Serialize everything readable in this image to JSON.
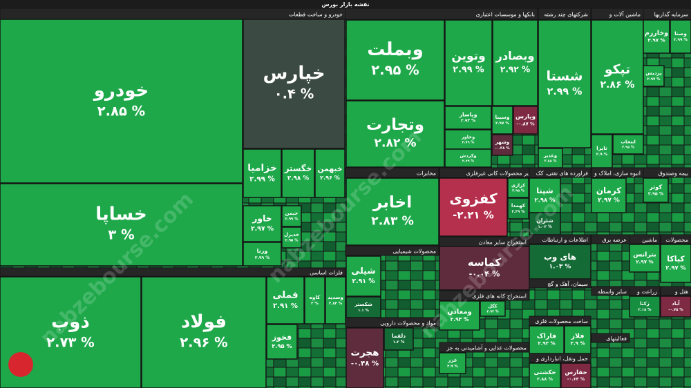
{
  "chart_data": {
    "type": "treemap",
    "title": "نقشه بازار بورس",
    "watermark": "nabzebourse.com",
    "sectors": [
      {
        "name": "خودرو و ساخت قطعات",
        "tiles": [
          {
            "name": "خودرو",
            "value": 2.85,
            "value_label": "۲.۸۵ %"
          },
          {
            "name": "خساپا",
            "value": 3,
            "value_label": "۳ %"
          },
          {
            "name": "خپارس",
            "value": 0.4,
            "value_label": "۰.۴ %"
          },
          {
            "name": "خزامیا",
            "value": 2.99,
            "value_label": "۲.۹۹ %"
          },
          {
            "name": "خگستر",
            "value": 2.98,
            "value_label": "۲.۹۸ %"
          },
          {
            "name": "خبهمن",
            "value": 2.96,
            "value_label": "۲.۹۶ %"
          },
          {
            "name": "خاور",
            "value": 2.97,
            "value_label": "۲.۹۷ %"
          },
          {
            "name": "ورنا",
            "value": 2.99,
            "value_label": "۲.۹۹ %"
          },
          {
            "name": "خیمن",
            "value": 2.99,
            "value_label": "۲.۹۹ %"
          },
          {
            "name": "خدیزل",
            "value": 2.95,
            "value_label": "۲.۹۵ %"
          }
        ]
      },
      {
        "name": "فلزات اساسی",
        "tiles": [
          {
            "name": "ذوب",
            "value": 2.73,
            "value_label": "۲.۷۳ %"
          },
          {
            "name": "فولاد",
            "value": 2.96,
            "value_label": "۲.۹۶ %"
          },
          {
            "name": "فملی",
            "value": 2.91,
            "value_label": "۲.۹۱ %"
          },
          {
            "name": "کاوه",
            "value": 3,
            "value_label": "۳ %"
          },
          {
            "name": "وسدید",
            "value": 2.84,
            "value_label": "۲.۸۴ %"
          },
          {
            "name": "فخوز",
            "value": 2.95,
            "value_label": "۲.۹۵ %"
          }
        ]
      },
      {
        "name": "بانکها و موسسات اعتباری",
        "tiles": [
          {
            "name": "وبملت",
            "value": 2.95,
            "value_label": "۲.۹۵ %"
          },
          {
            "name": "وتجارت",
            "value": 2.82,
            "value_label": "۲.۸۲ %"
          },
          {
            "name": "وتوین",
            "value": 2.99,
            "value_label": "۲.۹۹ %"
          },
          {
            "name": "وبصادر",
            "value": 2.92,
            "value_label": "۲.۹۲ %"
          },
          {
            "name": "وپاسار",
            "value": 2.93,
            "value_label": "۲.۹۳ %"
          },
          {
            "name": "وسینا",
            "value": 2.97,
            "value_label": "۲.۹۷ %"
          },
          {
            "name": "وپارس",
            "value": -0.87,
            "value_label": "-۰.۸۷ %"
          },
          {
            "name": "وخاور",
            "value": 2.79,
            "value_label": "۲.۷۹ %"
          },
          {
            "name": "وکردش",
            "value": 2.79,
            "value_label": "۲.۷۹ %"
          },
          {
            "name": "وشهر",
            "value": -0.38,
            "value_label": "-۰.۳۸ %"
          }
        ]
      },
      {
        "name": "مخابرات",
        "tiles": [
          {
            "name": "اخابر",
            "value": 2.83,
            "value_label": "۲.۸۳ %"
          }
        ]
      },
      {
        "name": "محصولات شیمیایی",
        "tiles": [
          {
            "name": "شپلی",
            "value": 2.91,
            "value_label": "۲.۹۱ %"
          },
          {
            "name": "شکستر",
            "value": 1.1,
            "value_label": "۱.۱ %"
          }
        ]
      },
      {
        "name": "مواد و محصولات دارویی",
        "tiles": [
          {
            "name": "هجرت",
            "value": -0.48,
            "value_label": "-۰.۴۸ %"
          },
          {
            "name": "دلقما",
            "value": 1.2,
            "value_label": "۱.۲ %"
          }
        ]
      },
      {
        "name": "سایر محصولات کانی غیرفلزی",
        "tiles": [
          {
            "name": "کفزوی",
            "value": -2.21,
            "value_label": "-۲.۲۱ %"
          },
          {
            "name": "کرازی",
            "value": 2.95,
            "value_label": "۲.۹۵ %"
          },
          {
            "name": "کهمدا",
            "value": 2.39,
            "value_label": "۲.۳۹ %"
          }
        ]
      },
      {
        "name": "استخراج سایر معادن",
        "tiles": [
          {
            "name": "کماسه",
            "value": -0.04,
            "value_label": "-۰.۰۴ %"
          }
        ]
      },
      {
        "name": "استخراج کانه های فلزی",
        "tiles": [
          {
            "name": "ومعادن",
            "value": 2.93,
            "value_label": "۲.۹۳ %"
          },
          {
            "name": "کگل",
            "value": 2.93,
            "value_label": "۲.۹۳ %"
          }
        ]
      },
      {
        "name": "محصولات غذایی و آشامیدنی به جز",
        "tiles": [
          {
            "name": "غزر",
            "value": 2.9,
            "value_label": "۲.۹ %"
          }
        ]
      },
      {
        "name": "شرکتهای چند رشته",
        "tiles": [
          {
            "name": "شستا",
            "value": 2.99,
            "value_label": "۲.۹۹ %"
          },
          {
            "name": "وغدیر",
            "value": 2.88,
            "value_label": "۲.۸۸ %"
          }
        ]
      },
      {
        "name": "ماشین آلات و",
        "tiles": [
          {
            "name": "تپکو",
            "value": 2.86,
            "value_label": "۲.۸۶ %"
          },
          {
            "name": "تاپرا",
            "value": 2.9,
            "value_label": "۲.۹ %"
          },
          {
            "name": "انتخاب",
            "value": 2.95,
            "value_label": "۲.۹۵ %"
          }
        ]
      },
      {
        "name": "سرمایه گذاریها",
        "tiles": [
          {
            "name": "وصنا",
            "value": 2.99,
            "value_label": "۲.۹۹ %"
          },
          {
            "name": "وخارزم",
            "value": 2.97,
            "value_label": "۲.۹۷ %"
          },
          {
            "name": "پردیس",
            "value": 2.97,
            "value_label": "۲.۹۷ %"
          }
        ]
      },
      {
        "name": "فراورده های نفتی، کک",
        "tiles": [
          {
            "name": "شپنا",
            "value": 2.98,
            "value_label": "۲.۹۸ %"
          },
          {
            "name": "شتران",
            "value": 1.03,
            "value_label": "۱.۰۳ %"
          }
        ]
      },
      {
        "name": "اطلاعات و ارتباطات",
        "tiles": [
          {
            "name": "های وب",
            "value": 1.03,
            "value_label": "۱.۰۳ %"
          }
        ]
      },
      {
        "name": "سیمان، آهک و گچ",
        "tiles": []
      },
      {
        "name": "ساخت محصولات فلزی",
        "tiles": [
          {
            "name": "فاراک",
            "value": 2.93,
            "value_label": "۲.۹۳ %"
          },
          {
            "name": "فلاز",
            "value": 2.9,
            "value_label": "۲.۹ %"
          }
        ]
      },
      {
        "name": "حمل ونقل، انبارداری و",
        "tiles": [
          {
            "name": "حکشتی",
            "value": 2.88,
            "value_label": "۲.۸۸ %"
          },
          {
            "name": "حفارس",
            "value": -0.63,
            "value_label": "-۰.۶۳ %"
          }
        ]
      },
      {
        "name": "انبوه سازی، املاک و",
        "tiles": [
          {
            "name": "کرمان",
            "value": 2.97,
            "value_label": "۲.۹۷ %"
          }
        ]
      },
      {
        "name": "بیمه وصندوق",
        "tiles": [
          {
            "name": "کوثر",
            "value": 2.95,
            "value_label": "۲.۹۵ %"
          }
        ]
      },
      {
        "name": "عرضه برق",
        "tiles": []
      },
      {
        "name": "ماشین",
        "tiles": [
          {
            "name": "بترانس",
            "value": 2.97,
            "value_label": "۲.۹۷ %"
          }
        ]
      },
      {
        "name": "محصولات",
        "tiles": [
          {
            "name": "کپاکا",
            "value": 2.97,
            "value_label": "۲.۹۷ %"
          }
        ]
      },
      {
        "name": "سایر واسطه",
        "tiles": []
      },
      {
        "name": "زراعت و",
        "tiles": [
          {
            "name": "زکثا",
            "value": 2.18,
            "value_label": "۲.۱۸ %"
          }
        ]
      },
      {
        "name": "هتل و",
        "tiles": [
          {
            "name": "آباد",
            "value": -0.75,
            "value_label": "-۰.۷۵ %"
          }
        ]
      },
      {
        "name": "فعالیتهای",
        "tiles": []
      }
    ]
  }
}
